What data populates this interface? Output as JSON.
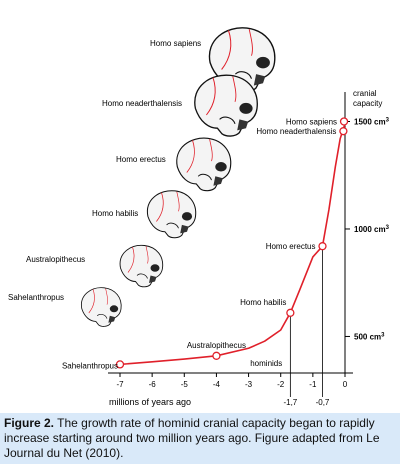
{
  "chart_data": {
    "type": "line",
    "x_label": "millions of years ago",
    "y_label_line1": "cranial",
    "y_label_line2": "capacity",
    "y_unit": "cm",
    "y_unit_exp": "3",
    "xlim": [
      -7.2,
      0.3
    ],
    "ylim": [
      330,
      1600
    ],
    "x_ticks": [
      {
        "value": -7,
        "label": "-7"
      },
      {
        "value": -6,
        "label": "-6"
      },
      {
        "value": -5,
        "label": "-5"
      },
      {
        "value": -4,
        "label": "-4"
      },
      {
        "value": -3,
        "label": "-3"
      },
      {
        "value": -2,
        "label": "-2"
      },
      {
        "value": -1,
        "label": "-1"
      },
      {
        "value": 0,
        "label": "0"
      }
    ],
    "y_ticks": [
      {
        "value": 500,
        "label": "500"
      },
      {
        "value": 1000,
        "label": "1000"
      },
      {
        "value": 1500,
        "label": "1500"
      }
    ],
    "curve": [
      {
        "x": -7,
        "y": 370
      },
      {
        "x": -6,
        "y": 382
      },
      {
        "x": -5,
        "y": 395
      },
      {
        "x": -4,
        "y": 410
      },
      {
        "x": -3,
        "y": 445
      },
      {
        "x": -2.5,
        "y": 478
      },
      {
        "x": -2,
        "y": 530
      },
      {
        "x": -1.7,
        "y": 610
      },
      {
        "x": -1.4,
        "y": 720
      },
      {
        "x": -1.0,
        "y": 870
      },
      {
        "x": -0.7,
        "y": 920
      },
      {
        "x": -0.5,
        "y": 1090
      },
      {
        "x": -0.3,
        "y": 1290
      },
      {
        "x": -0.15,
        "y": 1420
      },
      {
        "x": 0,
        "y": 1490
      }
    ],
    "points": [
      {
        "name": "Sahelanthropus",
        "x": -7.0,
        "y": 370,
        "label_side": "below-left"
      },
      {
        "name": "Australopithecus",
        "x": -4.0,
        "y": 410,
        "label_side": "above"
      },
      {
        "name": "Homo habilis",
        "x": -1.7,
        "y": 610,
        "label_side": "above-left"
      },
      {
        "name": "Homo erectus",
        "x": -0.7,
        "y": 920,
        "label_side": "left"
      },
      {
        "name": "Homo neaderthalensis",
        "x": -0.05,
        "y": 1455,
        "label_side": "left"
      },
      {
        "name": "Homo sapiens",
        "x": -0.03,
        "y": 1500,
        "label_side": "left"
      }
    ],
    "drop_lines": [
      {
        "x": -1.7,
        "label": "-1,7"
      },
      {
        "x": -0.7,
        "label": "-0,7"
      }
    ],
    "axis_note": "hominids",
    "skulls": [
      {
        "name": "Homo sapiens"
      },
      {
        "name": "Homo neaderthalensis"
      },
      {
        "name": "Homo erectus"
      },
      {
        "name": "Homo habilis"
      },
      {
        "name": "Australopithecus"
      },
      {
        "name": "Sahelanthropus"
      }
    ],
    "colors": {
      "curve": "#e0202a",
      "axis": "#000000",
      "caption_bg": "#d9e9f9"
    }
  },
  "caption": {
    "label": "Figure 2.",
    "text": " The growth rate of hominid cranial capacity began to rapidly increase starting around two million years ago.  Figure adapted from Le Journal du Net (2010)."
  }
}
